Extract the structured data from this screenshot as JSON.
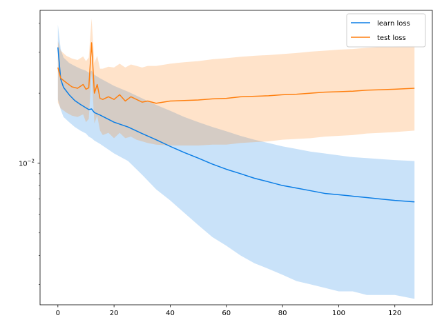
{
  "chart_data": {
    "type": "line",
    "title": "",
    "xlabel": "",
    "ylabel": "",
    "xlim": [
      -6.35,
      133.35
    ],
    "ylim": [
      0.00245,
      0.0455
    ],
    "y_scale": "log",
    "grid": false,
    "legend_placement": "top-right",
    "x_ticks": [
      0,
      20,
      40,
      60,
      80,
      100,
      120
    ],
    "x_tick_labels": [
      "0",
      "20",
      "40",
      "60",
      "80",
      "100",
      "120"
    ],
    "y_ticks": [
      0.01
    ],
    "y_tick_labels": [
      "10−2"
    ],
    "y_tick_label_base": "10",
    "y_tick_label_exponent": "−2",
    "series": [
      {
        "name": "learn loss",
        "color": "#0a7de5",
        "band_color": "#a9d1fa",
        "points": [
          {
            "x": 0,
            "y": 0.0315,
            "upper": 0.0395,
            "lower": 0.0188
          },
          {
            "x": 1,
            "y": 0.023,
            "upper": 0.031,
            "lower": 0.017
          },
          {
            "x": 2,
            "y": 0.0212,
            "upper": 0.0285,
            "lower": 0.0158
          },
          {
            "x": 4,
            "y": 0.0197,
            "upper": 0.027,
            "lower": 0.015
          },
          {
            "x": 6,
            "y": 0.0186,
            "upper": 0.0262,
            "lower": 0.0143
          },
          {
            "x": 8,
            "y": 0.0179,
            "upper": 0.0255,
            "lower": 0.0138
          },
          {
            "x": 10,
            "y": 0.0173,
            "upper": 0.025,
            "lower": 0.0134
          },
          {
            "x": 11,
            "y": 0.017,
            "upper": 0.0245,
            "lower": 0.013
          },
          {
            "x": 12,
            "y": 0.0171,
            "upper": 0.025,
            "lower": 0.0128
          },
          {
            "x": 13,
            "y": 0.0165,
            "upper": 0.024,
            "lower": 0.0125
          },
          {
            "x": 15,
            "y": 0.0161,
            "upper": 0.0232,
            "lower": 0.0121
          },
          {
            "x": 20,
            "y": 0.015,
            "upper": 0.0215,
            "lower": 0.011
          },
          {
            "x": 25,
            "y": 0.0143,
            "upper": 0.0203,
            "lower": 0.0102
          },
          {
            "x": 30,
            "y": 0.0134,
            "upper": 0.019,
            "lower": 0.0089
          },
          {
            "x": 35,
            "y": 0.0126,
            "upper": 0.0178,
            "lower": 0.0077
          },
          {
            "x": 40,
            "y": 0.0118,
            "upper": 0.0168,
            "lower": 0.0069
          },
          {
            "x": 45,
            "y": 0.0111,
            "upper": 0.0158,
            "lower": 0.0061
          },
          {
            "x": 50,
            "y": 0.0105,
            "upper": 0.015,
            "lower": 0.0054
          },
          {
            "x": 55,
            "y": 0.0099,
            "upper": 0.0143,
            "lower": 0.0048
          },
          {
            "x": 60,
            "y": 0.0094,
            "upper": 0.0137,
            "lower": 0.0044
          },
          {
            "x": 65,
            "y": 0.009,
            "upper": 0.0131,
            "lower": 0.004
          },
          {
            "x": 70,
            "y": 0.0086,
            "upper": 0.0126,
            "lower": 0.0037
          },
          {
            "x": 75,
            "y": 0.0083,
            "upper": 0.0122,
            "lower": 0.0035
          },
          {
            "x": 80,
            "y": 0.008,
            "upper": 0.0118,
            "lower": 0.0033
          },
          {
            "x": 85,
            "y": 0.0078,
            "upper": 0.0115,
            "lower": 0.0031
          },
          {
            "x": 90,
            "y": 0.0076,
            "upper": 0.0112,
            "lower": 0.003
          },
          {
            "x": 95,
            "y": 0.0074,
            "upper": 0.011,
            "lower": 0.0029
          },
          {
            "x": 100,
            "y": 0.0073,
            "upper": 0.0108,
            "lower": 0.0028
          },
          {
            "x": 105,
            "y": 0.0072,
            "upper": 0.0106,
            "lower": 0.0028
          },
          {
            "x": 110,
            "y": 0.0071,
            "upper": 0.0105,
            "lower": 0.0027
          },
          {
            "x": 115,
            "y": 0.007,
            "upper": 0.0104,
            "lower": 0.0027
          },
          {
            "x": 120,
            "y": 0.0069,
            "upper": 0.0103,
            "lower": 0.0027
          },
          {
            "x": 127,
            "y": 0.0068,
            "upper": 0.0102,
            "lower": 0.0026
          }
        ]
      },
      {
        "name": "test loss",
        "color": "#ff7f0e",
        "band_color": "#fdd6b2",
        "points": [
          {
            "x": 0,
            "y": 0.0258,
            "upper": 0.0335,
            "lower": 0.0182
          },
          {
            "x": 1,
            "y": 0.0232,
            "upper": 0.0305,
            "lower": 0.0172
          },
          {
            "x": 3,
            "y": 0.0222,
            "upper": 0.029,
            "lower": 0.0165
          },
          {
            "x": 5,
            "y": 0.0213,
            "upper": 0.0282,
            "lower": 0.016
          },
          {
            "x": 7,
            "y": 0.021,
            "upper": 0.0278,
            "lower": 0.0158
          },
          {
            "x": 9,
            "y": 0.0218,
            "upper": 0.0288,
            "lower": 0.0162
          },
          {
            "x": 10,
            "y": 0.0208,
            "upper": 0.0275,
            "lower": 0.015
          },
          {
            "x": 11,
            "y": 0.0211,
            "upper": 0.0285,
            "lower": 0.0155
          },
          {
            "x": 12,
            "y": 0.033,
            "upper": 0.042,
            "lower": 0.0245
          },
          {
            "x": 13,
            "y": 0.02,
            "upper": 0.027,
            "lower": 0.0148
          },
          {
            "x": 14,
            "y": 0.0218,
            "upper": 0.029,
            "lower": 0.016
          },
          {
            "x": 15,
            "y": 0.019,
            "upper": 0.0255,
            "lower": 0.0138
          },
          {
            "x": 16,
            "y": 0.0188,
            "upper": 0.0255,
            "lower": 0.0132
          },
          {
            "x": 18,
            "y": 0.0193,
            "upper": 0.026,
            "lower": 0.0135
          },
          {
            "x": 20,
            "y": 0.0188,
            "upper": 0.0258,
            "lower": 0.0128
          },
          {
            "x": 22,
            "y": 0.0197,
            "upper": 0.0268,
            "lower": 0.0135
          },
          {
            "x": 24,
            "y": 0.0185,
            "upper": 0.0258,
            "lower": 0.0128
          },
          {
            "x": 26,
            "y": 0.0193,
            "upper": 0.0266,
            "lower": 0.013
          },
          {
            "x": 28,
            "y": 0.0188,
            "upper": 0.0262,
            "lower": 0.0126
          },
          {
            "x": 30,
            "y": 0.0183,
            "upper": 0.0258,
            "lower": 0.0124
          },
          {
            "x": 32,
            "y": 0.0185,
            "upper": 0.0262,
            "lower": 0.0122
          },
          {
            "x": 35,
            "y": 0.0181,
            "upper": 0.0262,
            "lower": 0.012
          },
          {
            "x": 40,
            "y": 0.0185,
            "upper": 0.0268,
            "lower": 0.0119
          },
          {
            "x": 45,
            "y": 0.0186,
            "upper": 0.0272,
            "lower": 0.0119
          },
          {
            "x": 50,
            "y": 0.0187,
            "upper": 0.0275,
            "lower": 0.0119
          },
          {
            "x": 55,
            "y": 0.0189,
            "upper": 0.028,
            "lower": 0.012
          },
          {
            "x": 60,
            "y": 0.019,
            "upper": 0.0283,
            "lower": 0.012
          },
          {
            "x": 65,
            "y": 0.0193,
            "upper": 0.0287,
            "lower": 0.0122
          },
          {
            "x": 70,
            "y": 0.0194,
            "upper": 0.029,
            "lower": 0.0123
          },
          {
            "x": 75,
            "y": 0.0195,
            "upper": 0.0292,
            "lower": 0.0124
          },
          {
            "x": 80,
            "y": 0.0197,
            "upper": 0.0295,
            "lower": 0.0126
          },
          {
            "x": 85,
            "y": 0.0198,
            "upper": 0.0298,
            "lower": 0.0127
          },
          {
            "x": 90,
            "y": 0.02,
            "upper": 0.0302,
            "lower": 0.0128
          },
          {
            "x": 95,
            "y": 0.0202,
            "upper": 0.0305,
            "lower": 0.013
          },
          {
            "x": 100,
            "y": 0.0203,
            "upper": 0.0308,
            "lower": 0.0131
          },
          {
            "x": 105,
            "y": 0.0204,
            "upper": 0.031,
            "lower": 0.0132
          },
          {
            "x": 110,
            "y": 0.0206,
            "upper": 0.0314,
            "lower": 0.0134
          },
          {
            "x": 115,
            "y": 0.0207,
            "upper": 0.0316,
            "lower": 0.0135
          },
          {
            "x": 120,
            "y": 0.0208,
            "upper": 0.0318,
            "lower": 0.0136
          },
          {
            "x": 127,
            "y": 0.021,
            "upper": 0.032,
            "lower": 0.0138
          }
        ]
      }
    ]
  }
}
